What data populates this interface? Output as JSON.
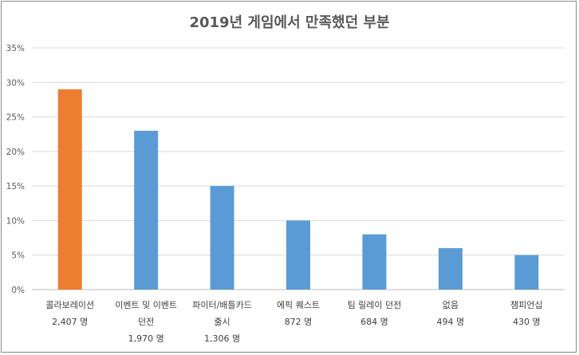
{
  "chart_data": {
    "type": "bar",
    "title": "2019년 게임에서 만족했던 부분",
    "ylim": [
      0,
      35
    ],
    "yticks": [
      "0%",
      "5%",
      "10%",
      "15%",
      "20%",
      "25%",
      "30%",
      "35%"
    ],
    "grid": true,
    "categories": [
      {
        "lines": [
          "콜라보레이션",
          "2,407 명"
        ],
        "value": 29,
        "color": "#ED7D31"
      },
      {
        "lines": [
          "이벤트 및 이벤트",
          "던전",
          "1,970 명"
        ],
        "value": 23,
        "color": "#5B9BD5"
      },
      {
        "lines": [
          "파이터/배틀카드",
          "출시",
          "1,306 명"
        ],
        "value": 15,
        "color": "#5B9BD5"
      },
      {
        "lines": [
          "에픽 퀘스트",
          "872 명"
        ],
        "value": 10,
        "color": "#5B9BD5"
      },
      {
        "lines": [
          "팀 릴레이 던전",
          "684 명"
        ],
        "value": 8,
        "color": "#5B9BD5"
      },
      {
        "lines": [
          "없음",
          "494 명"
        ],
        "value": 6,
        "color": "#5B9BD5"
      },
      {
        "lines": [
          "챔피언십",
          "430 명"
        ],
        "value": 5,
        "color": "#5B9BD5"
      }
    ]
  }
}
